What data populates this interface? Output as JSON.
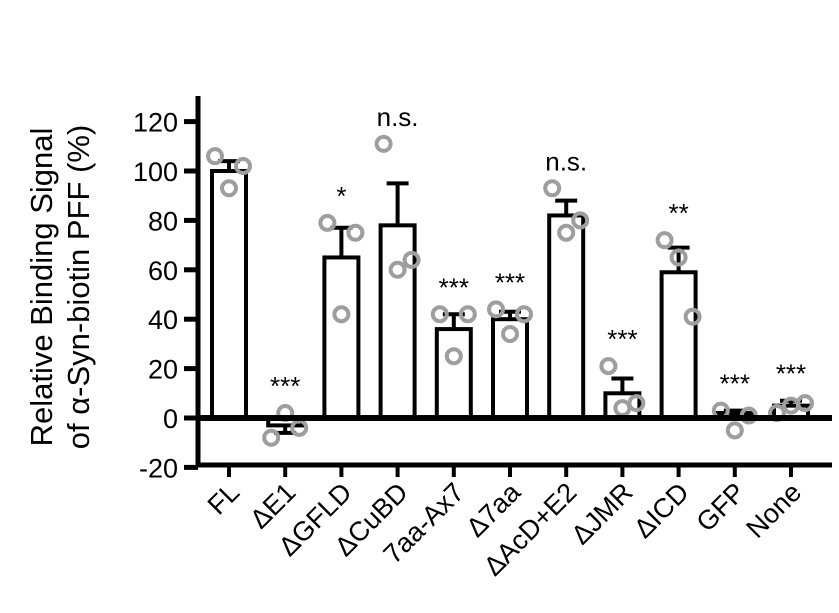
{
  "chart_data": {
    "type": "bar",
    "ylabel_lines": [
      "Relative Binding Signal",
      "of α-Syn-biotin PFF (%)"
    ],
    "ylim": [
      -20,
      120
    ],
    "yticks": [
      -20,
      0,
      20,
      40,
      60,
      80,
      100,
      120
    ],
    "categories": [
      "FL",
      "ΔE1",
      "ΔGFLD",
      "ΔCuBD",
      "7aa-Ax7",
      "Δ7aa",
      "ΔAcD+E2",
      "ΔJMR",
      "ΔICD",
      "GFP",
      "None"
    ],
    "values": [
      100,
      -3,
      65,
      78,
      36,
      40,
      82,
      10,
      59,
      2,
      5
    ],
    "errors": [
      4,
      3,
      12,
      17,
      6,
      3,
      6,
      6,
      10,
      1,
      2
    ],
    "points": [
      [
        106,
        93,
        102
      ],
      [
        -8,
        2,
        -4
      ],
      [
        79,
        42,
        75
      ],
      [
        111,
        60,
        64
      ],
      [
        42,
        25,
        42
      ],
      [
        44,
        34,
        42
      ],
      [
        93,
        75,
        80
      ],
      [
        21,
        4,
        6
      ],
      [
        72,
        65,
        41
      ],
      [
        3,
        -5,
        1
      ],
      [
        2,
        5,
        6
      ]
    ],
    "significance": [
      "",
      "***",
      "*",
      "n.s.",
      "***",
      "***",
      "n.s.",
      "***",
      "**",
      "***",
      "***"
    ],
    "grid": false,
    "legend": "none"
  }
}
